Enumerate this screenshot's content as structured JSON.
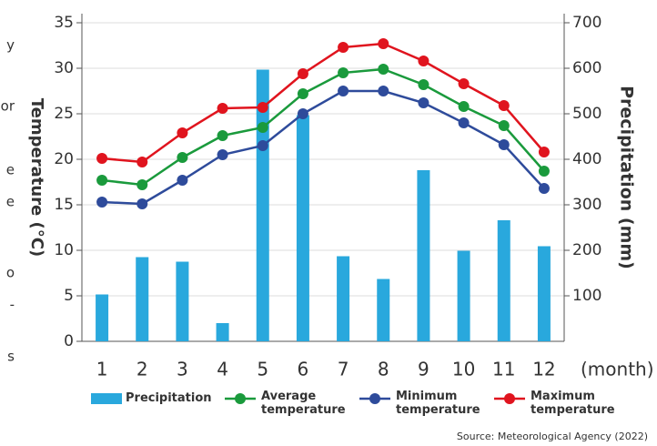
{
  "margin_text": [
    "y",
    "or",
    "e",
    "e",
    "o",
    "-",
    "s"
  ],
  "chart_data": {
    "type": "bar-line",
    "x_label": "(month)",
    "y_label": "Temperature (°C)",
    "y2_label": "Precipitation (mm)",
    "source": "Source: Meteorological Agency (2022)",
    "categories": [
      "1",
      "2",
      "3",
      "4",
      "5",
      "6",
      "7",
      "8",
      "9",
      "10",
      "11",
      "12"
    ],
    "ylim": [
      0,
      35
    ],
    "yticks": [
      0,
      5,
      10,
      15,
      20,
      25,
      30,
      35
    ],
    "y2lim": [
      0,
      700
    ],
    "y2ticks": [
      100,
      200,
      300,
      400,
      500,
      600,
      700
    ],
    "grid": true,
    "series": [
      {
        "name": "Precipitation",
        "type": "bar",
        "axis": "y2",
        "color": "#29a8dd",
        "values": [
          103,
          185,
          175,
          40,
          597,
          497,
          187,
          137,
          376,
          199,
          266,
          209
        ]
      },
      {
        "name": "Average temperature",
        "type": "line",
        "color": "#1a9a3c",
        "values": [
          17.7,
          17.2,
          20.2,
          22.6,
          23.5,
          27.2,
          29.5,
          29.9,
          28.2,
          25.8,
          23.7,
          18.7
        ]
      },
      {
        "name": "Minimum temperature",
        "type": "line",
        "color": "#2e4b9b",
        "values": [
          15.3,
          15.1,
          17.7,
          20.5,
          21.5,
          25.0,
          27.5,
          27.5,
          26.2,
          24.0,
          21.6,
          16.8
        ]
      },
      {
        "name": "Maximum temperature",
        "type": "line",
        "color": "#e0141e",
        "values": [
          20.1,
          19.7,
          22.9,
          25.6,
          25.7,
          29.4,
          32.3,
          32.7,
          30.8,
          28.3,
          25.9,
          20.8
        ]
      }
    ]
  }
}
